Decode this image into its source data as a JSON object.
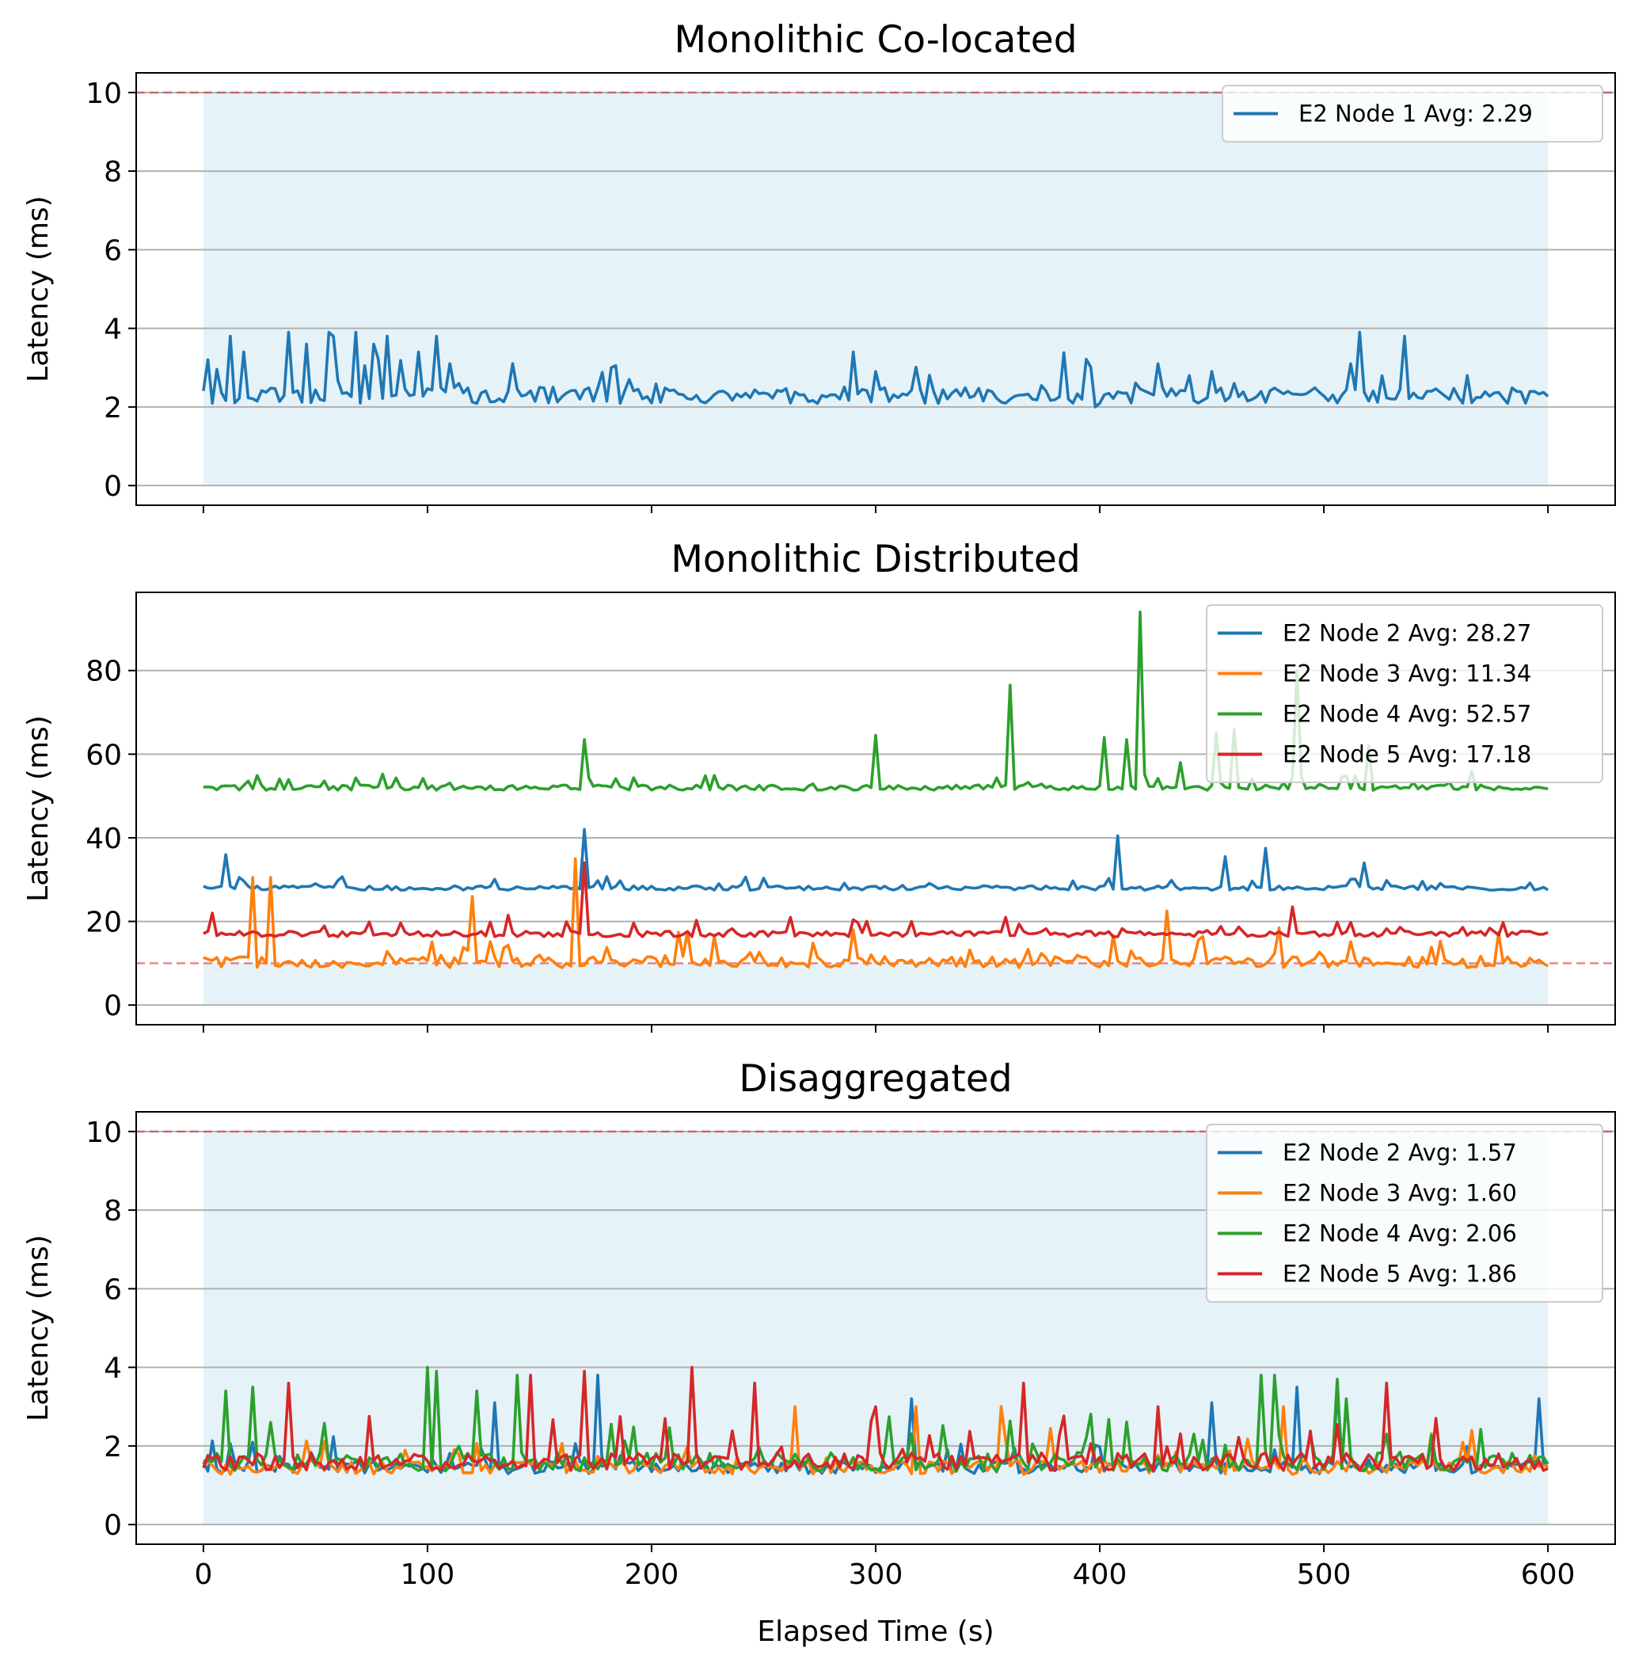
{
  "figure": {
    "xlabel": "Elapsed Time (s)",
    "xticks": [
      0,
      100,
      200,
      300,
      400,
      500,
      600
    ]
  },
  "colors": {
    "blue": "#1f77b4",
    "orange": "#ff7f0e",
    "green": "#2ca02c",
    "red": "#d62728",
    "shade": "#add8e6",
    "threshold": "#d62728",
    "grid": "#b0b0b0"
  },
  "chart_data": [
    {
      "type": "line",
      "title": "Monolithic Co-located",
      "ylabel": "Latency (ms)",
      "xlim": [
        -30,
        630
      ],
      "ylim": [
        -0.5,
        10.5
      ],
      "yticks": [
        0,
        2,
        4,
        6,
        8,
        10
      ],
      "grid": "horizontal",
      "threshold": 10,
      "shaded_region": {
        "x": [
          0,
          600
        ],
        "y": [
          0,
          10
        ]
      },
      "legend": "top-right",
      "series": [
        {
          "name": "E2 Node 1 Avg: 2.29",
          "color": "blue",
          "base": 2.29,
          "x": [
            0,
            600
          ],
          "peaks": [
            [
              2,
              3.2
            ],
            [
              12,
              3.8
            ],
            [
              17,
              3.4
            ],
            [
              37,
              3.9
            ],
            [
              45,
              3.6
            ],
            [
              56,
              3.9
            ],
            [
              58,
              3.8
            ],
            [
              67,
              3.9
            ],
            [
              76,
              3.6
            ],
            [
              82,
              3.8
            ],
            [
              97,
              3.4
            ],
            [
              103,
              3.8
            ],
            [
              113,
              2.6
            ],
            [
              135,
              2.4
            ],
            [
              150,
              2.5
            ],
            [
              168,
              2.2
            ],
            [
              190,
              2.7
            ],
            [
              290,
              3.4
            ],
            [
              300,
              2.9
            ],
            [
              398,
              2.0
            ],
            [
              425,
              3.1
            ],
            [
              440,
              2.8
            ],
            [
              460,
              2.6
            ],
            [
              483,
              2.4
            ],
            [
              512,
              3.1
            ],
            [
              515,
              3.9
            ],
            [
              535,
              3.8
            ],
            [
              548,
              2.4
            ],
            [
              563,
              2.8
            ]
          ],
          "noise": 0.45
        }
      ]
    },
    {
      "type": "line",
      "title": "Monolithic Distributed",
      "ylabel": "Latency (ms)",
      "xlim": [
        -30,
        630
      ],
      "ylim": [
        -4.7,
        98.7
      ],
      "yticks": [
        0,
        20,
        40,
        60,
        80
      ],
      "grid": "horizontal",
      "threshold": 10,
      "shaded_region": {
        "x": [
          0,
          600
        ],
        "y": [
          0,
          10
        ]
      },
      "legend": "top-right",
      "series": [
        {
          "name": "E2 Node 2 Avg: 28.27",
          "color": "blue",
          "base": 28.0,
          "x": [
            0,
            600
          ],
          "peaks": [
            [
              9,
              36
            ],
            [
              170,
              42
            ],
            [
              408,
              40.5
            ],
            [
              455,
              35.5
            ],
            [
              474,
              37.5
            ],
            [
              518,
              34
            ]
          ],
          "noise": 1.2
        },
        {
          "name": "E2 Node 3 Avg: 11.34",
          "color": "orange",
          "base": 10.3,
          "x": [
            0,
            600
          ],
          "peaks": [
            [
              21,
              30.5
            ],
            [
              30,
              30.5
            ],
            [
              165,
              35
            ],
            [
              120,
              26
            ],
            [
              290,
              18
            ],
            [
              430,
              22.5
            ],
            [
              480,
              18.5
            ]
          ],
          "noise": 3.0
        },
        {
          "name": "E2 Node 4 Avg: 52.57",
          "color": "green",
          "base": 52.0,
          "x": [
            0,
            600
          ],
          "peaks": [
            [
              170,
              63.5
            ],
            [
              300,
              64.5
            ],
            [
              360,
              76.5
            ],
            [
              402,
              64
            ],
            [
              418,
              94
            ],
            [
              411,
              63.5
            ],
            [
              436,
              58
            ],
            [
              452,
              65
            ],
            [
              460,
              66
            ],
            [
              488,
              80
            ],
            [
              520,
              62
            ],
            [
              565,
              56
            ]
          ],
          "noise": 1.4
        },
        {
          "name": "E2 Node 5 Avg: 17.18",
          "color": "red",
          "base": 17.0,
          "x": [
            0,
            600
          ],
          "peaks": [
            [
              4,
              22
            ],
            [
              170,
              34
            ],
            [
              136,
              21.5
            ],
            [
              485,
              23.5
            ],
            [
              261,
              21
            ],
            [
              358,
              21
            ]
          ],
          "noise": 1.5
        }
      ]
    },
    {
      "type": "line",
      "title": "Disaggregated",
      "ylabel": "Latency (ms)",
      "xlim": [
        -30,
        630
      ],
      "ylim": [
        -0.5,
        10.5
      ],
      "yticks": [
        0,
        2,
        4,
        6,
        8,
        10
      ],
      "grid": "horizontal",
      "threshold": 10,
      "shaded_region": {
        "x": [
          0,
          600
        ],
        "y": [
          0,
          10
        ]
      },
      "legend": "top-right",
      "series": [
        {
          "name": "E2 Node 2 Avg: 1.57",
          "color": "blue",
          "base": 1.45,
          "x": [
            0,
            600
          ],
          "peaks": [
            [
              130,
              3.1
            ],
            [
              176,
              3.8
            ],
            [
              315,
              3.2
            ],
            [
              450,
              3.1
            ],
            [
              489,
              3.5
            ],
            [
              505,
              3.4
            ],
            [
              595,
              3.2
            ]
          ],
          "noise": 0.35
        },
        {
          "name": "E2 Node 3 Avg: 1.60",
          "color": "orange",
          "base": 1.45,
          "x": [
            0,
            600
          ],
          "peaks": [
            [
              263,
              3.0
            ],
            [
              318,
              3.0
            ],
            [
              355,
              3.0
            ],
            [
              482,
              3.0
            ]
          ],
          "noise": 0.4
        },
        {
          "name": "E2 Node 4 Avg: 2.06",
          "color": "green",
          "base": 1.6,
          "x": [
            0,
            600
          ],
          "peaks": [
            [
              10,
              3.4
            ],
            [
              21,
              3.5
            ],
            [
              30,
              2.6
            ],
            [
              100,
              4.0
            ],
            [
              104,
              3.9
            ],
            [
              123,
              3.4
            ],
            [
              140,
              3.8
            ],
            [
              472,
              3.8
            ],
            [
              478,
              3.8
            ],
            [
              505,
              3.7
            ],
            [
              510,
              3.2
            ]
          ],
          "noise": 0.55
        },
        {
          "name": "E2 Node 5 Avg: 1.86",
          "color": "red",
          "base": 1.6,
          "x": [
            0,
            600
          ],
          "peaks": [
            [
              37,
              3.6
            ],
            [
              146,
              3.8
            ],
            [
              170,
              3.9
            ],
            [
              217,
              4.0
            ],
            [
              245,
              3.6
            ],
            [
              300,
              3.0
            ],
            [
              366,
              3.6
            ],
            [
              425,
              3.0
            ],
            [
              527,
              3.6
            ]
          ],
          "noise": 0.5
        }
      ]
    }
  ]
}
